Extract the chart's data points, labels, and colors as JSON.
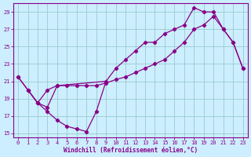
{
  "xlabel": "Windchill (Refroidissement éolien,°C)",
  "xlim": [
    -0.5,
    23.5
  ],
  "ylim": [
    14.5,
    30
  ],
  "xticks": [
    0,
    1,
    2,
    3,
    4,
    5,
    6,
    7,
    8,
    9,
    10,
    11,
    12,
    13,
    14,
    15,
    16,
    17,
    18,
    19,
    20,
    21,
    22,
    23
  ],
  "yticks": [
    15,
    17,
    19,
    21,
    23,
    25,
    27,
    29
  ],
  "bg_color": "#cceeff",
  "line_color": "#880088",
  "grid_color": "#99cccc",
  "line1_x": [
    0,
    1,
    2,
    3,
    4,
    9,
    10,
    11,
    12,
    13,
    14,
    15,
    16,
    17,
    18,
    19,
    20,
    21,
    22,
    23
  ],
  "line1_y": [
    21.5,
    20.0,
    18.5,
    18.0,
    20.5,
    21.0,
    22.5,
    23.5,
    24.5,
    25.5,
    25.5,
    26.5,
    27.0,
    27.5,
    29.5,
    29.0,
    29.0,
    27.0,
    25.5,
    22.5
  ],
  "line2_x": [
    0,
    1,
    2,
    3,
    4,
    5,
    6,
    7,
    8,
    9,
    10,
    11,
    12,
    13,
    14,
    15,
    16,
    17,
    18,
    19,
    20,
    21,
    22,
    23
  ],
  "line2_y": [
    21.5,
    20.0,
    18.5,
    20.0,
    20.5,
    20.5,
    20.5,
    20.5,
    20.5,
    20.8,
    21.2,
    21.5,
    22.0,
    22.5,
    23.0,
    23.5,
    24.5,
    25.5,
    27.0,
    27.5,
    28.5,
    27.0,
    25.5,
    22.5
  ],
  "line3_x": [
    1,
    2,
    3,
    4,
    5,
    6,
    7,
    8,
    9
  ],
  "line3_y": [
    20.0,
    18.5,
    17.5,
    16.5,
    15.8,
    15.5,
    15.2,
    17.5,
    21.0
  ]
}
